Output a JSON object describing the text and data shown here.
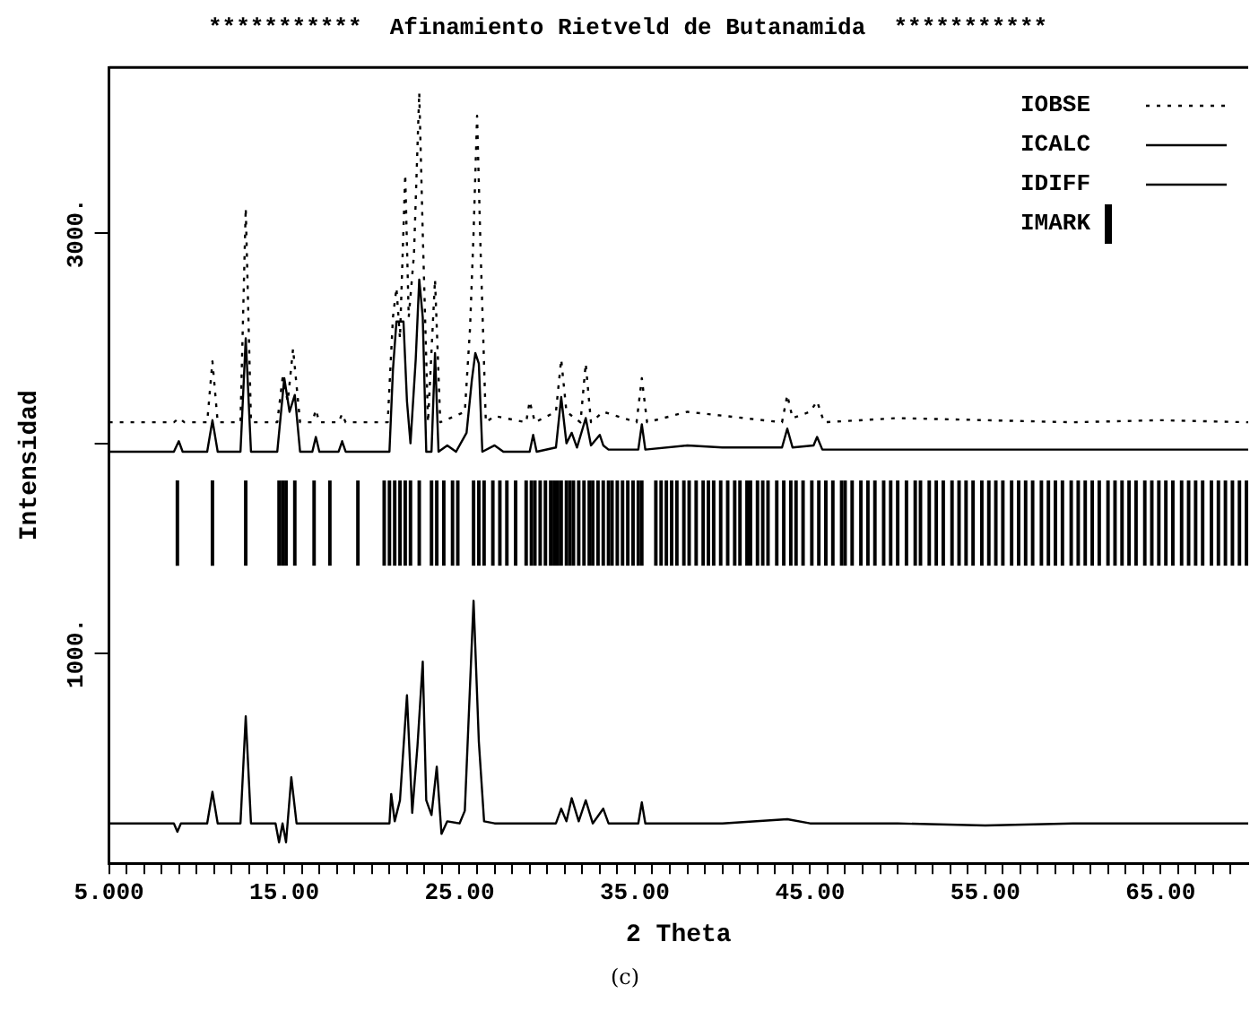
{
  "chart_data": {
    "type": "line",
    "title": "***********  Afinamiento Rietveld de Butanamida  ***********",
    "xlabel": "2 Theta",
    "ylabel": "Intensidad",
    "annotations": [
      "(c)"
    ],
    "legend": "top right",
    "xlim": [
      5,
      70
    ],
    "ylim": [
      0,
      3790
    ],
    "xticks": [
      {
        "value": 5,
        "label": "5.000"
      },
      {
        "value": 6,
        "label": null
      },
      {
        "value": 7,
        "label": null
      },
      {
        "value": 8,
        "label": null
      },
      {
        "value": 9,
        "label": null
      },
      {
        "value": 10,
        "label": null
      },
      {
        "value": 11,
        "label": null
      },
      {
        "value": 12,
        "label": null
      },
      {
        "value": 13,
        "label": null
      },
      {
        "value": 14,
        "label": null
      },
      {
        "value": 15,
        "label": "15.00"
      },
      {
        "value": 16,
        "label": null
      },
      {
        "value": 17,
        "label": null
      },
      {
        "value": 18,
        "label": null
      },
      {
        "value": 19,
        "label": null
      },
      {
        "value": 20,
        "label": null
      },
      {
        "value": 21,
        "label": null
      },
      {
        "value": 22,
        "label": null
      },
      {
        "value": 23,
        "label": null
      },
      {
        "value": 24,
        "label": null
      },
      {
        "value": 25,
        "label": "25.00"
      },
      {
        "value": 26,
        "label": null
      },
      {
        "value": 27,
        "label": null
      },
      {
        "value": 28,
        "label": null
      },
      {
        "value": 29,
        "label": null
      },
      {
        "value": 30,
        "label": null
      },
      {
        "value": 31,
        "label": null
      },
      {
        "value": 32,
        "label": null
      },
      {
        "value": 33,
        "label": null
      },
      {
        "value": 34,
        "label": null
      },
      {
        "value": 35,
        "label": "35.00"
      },
      {
        "value": 36,
        "label": null
      },
      {
        "value": 37,
        "label": null
      },
      {
        "value": 38,
        "label": null
      },
      {
        "value": 39,
        "label": null
      },
      {
        "value": 40,
        "label": null
      },
      {
        "value": 41,
        "label": null
      },
      {
        "value": 42,
        "label": null
      },
      {
        "value": 43,
        "label": null
      },
      {
        "value": 44,
        "label": null
      },
      {
        "value": 45,
        "label": "45.00"
      },
      {
        "value": 46,
        "label": null
      },
      {
        "value": 47,
        "label": null
      },
      {
        "value": 48,
        "label": null
      },
      {
        "value": 49,
        "label": null
      },
      {
        "value": 50,
        "label": null
      },
      {
        "value": 51,
        "label": null
      },
      {
        "value": 52,
        "label": null
      },
      {
        "value": 53,
        "label": null
      },
      {
        "value": 54,
        "label": null
      },
      {
        "value": 55,
        "label": "55.00"
      },
      {
        "value": 56,
        "label": null
      },
      {
        "value": 57,
        "label": null
      },
      {
        "value": 58,
        "label": null
      },
      {
        "value": 59,
        "label": null
      },
      {
        "value": 60,
        "label": null
      },
      {
        "value": 61,
        "label": null
      },
      {
        "value": 62,
        "label": null
      },
      {
        "value": 63,
        "label": null
      },
      {
        "value": 64,
        "label": null
      },
      {
        "value": 65,
        "label": "65.00"
      },
      {
        "value": 66,
        "label": null
      },
      {
        "value": 67,
        "label": null
      },
      {
        "value": 68,
        "label": null
      },
      {
        "value": 69,
        "label": null
      }
    ],
    "yticks": [
      {
        "value": 1000,
        "label": "1000."
      },
      {
        "value": 2000,
        "label": null
      },
      {
        "value": 3000,
        "label": "3000."
      }
    ],
    "series": [
      {
        "name": "IOBSE",
        "color": "#000000",
        "line_style": "dotted",
        "x": [
          5,
          8.7,
          9.0,
          9.3,
          10.6,
          10.9,
          11.2,
          12.5,
          12.8,
          13.1,
          14.6,
          14.9,
          15.2,
          15.5,
          15.9,
          16.6,
          16.8,
          17.0,
          18.1,
          18.3,
          18.5,
          20.9,
          21.2,
          21.4,
          21.6,
          21.9,
          22.1,
          22.4,
          22.7,
          22.9,
          23.2,
          23.6,
          23.9,
          25.3,
          25.6,
          25.8,
          26.0,
          26.2,
          26.5,
          27.0,
          28.8,
          29.0,
          29.3,
          30.5,
          30.8,
          31.1,
          31.9,
          32.2,
          32.5,
          33.2,
          35.1,
          35.4,
          35.7,
          38.0,
          43.4,
          43.7,
          44.0,
          45.0,
          45.4,
          45.8,
          50,
          55,
          60,
          65,
          70
        ],
        "values": [
          2100,
          2100,
          2120,
          2100,
          2100,
          2390,
          2100,
          2100,
          3120,
          2100,
          2100,
          2310,
          2200,
          2450,
          2100,
          2100,
          2160,
          2100,
          2100,
          2140,
          2100,
          2100,
          2600,
          2740,
          2500,
          3280,
          2600,
          2900,
          3670,
          3000,
          2100,
          2780,
          2100,
          2150,
          2550,
          3000,
          3560,
          2920,
          2100,
          2130,
          2100,
          2200,
          2100,
          2150,
          2400,
          2150,
          2100,
          2380,
          2100,
          2150,
          2100,
          2310,
          2100,
          2150,
          2100,
          2230,
          2120,
          2150,
          2200,
          2100,
          2120,
          2110,
          2100,
          2110,
          2100
        ]
      },
      {
        "name": "ICALC",
        "color": "#000000",
        "line_style": "solid",
        "x": [
          5,
          8.7,
          8.98,
          9.2,
          10.6,
          10.9,
          11.2,
          12.5,
          12.8,
          13.1,
          14.6,
          15.0,
          15.3,
          15.6,
          15.9,
          16.6,
          16.8,
          17.0,
          18.1,
          18.3,
          18.5,
          21.0,
          21.2,
          21.4,
          21.8,
          22.0,
          22.2,
          22.5,
          22.7,
          22.9,
          23.1,
          23.4,
          23.6,
          23.8,
          24.3,
          24.8,
          25.4,
          25.7,
          25.9,
          26.1,
          26.3,
          27.0,
          27.5,
          29.0,
          29.2,
          29.4,
          30.5,
          30.8,
          31.1,
          31.4,
          31.7,
          32.2,
          32.5,
          33.0,
          33.2,
          33.5,
          35.2,
          35.4,
          35.6,
          38.0,
          40.0,
          43.4,
          43.7,
          44.0,
          45.2,
          45.4,
          45.7,
          50,
          55,
          60,
          65,
          70
        ],
        "values": [
          1960,
          1960,
          2010,
          1960,
          1960,
          2110,
          1960,
          1960,
          2500,
          1960,
          1960,
          2310,
          2150,
          2230,
          1960,
          1960,
          2030,
          1960,
          1960,
          2010,
          1960,
          1960,
          2350,
          2580,
          2580,
          2200,
          2000,
          2400,
          2780,
          2600,
          1960,
          1960,
          2430,
          1960,
          1990,
          1960,
          2050,
          2300,
          2430,
          2380,
          1960,
          1990,
          1960,
          1960,
          2040,
          1960,
          1980,
          2220,
          2000,
          2050,
          1980,
          2120,
          1990,
          2040,
          1990,
          1970,
          1970,
          2090,
          1970,
          1990,
          1980,
          1980,
          2070,
          1980,
          1990,
          2030,
          1970,
          1970,
          1970,
          1970,
          1970,
          1970
        ]
      },
      {
        "name": "IDIFF",
        "color": "#000000",
        "line_style": "solid",
        "x": [
          5,
          8.7,
          8.9,
          9.1,
          10.6,
          10.9,
          11.2,
          12.5,
          12.8,
          13.1,
          14.5,
          14.7,
          14.9,
          15.1,
          15.4,
          15.7,
          21.0,
          21.1,
          21.3,
          21.6,
          22.0,
          22.3,
          22.6,
          22.9,
          23.1,
          23.4,
          23.7,
          23.97,
          24.3,
          25.0,
          25.3,
          25.8,
          26.1,
          26.4,
          27.0,
          30.5,
          30.8,
          31.1,
          31.4,
          31.8,
          32.2,
          32.6,
          33.2,
          33.5,
          35.2,
          35.4,
          35.6,
          40,
          43.7,
          45,
          50,
          55,
          60,
          65,
          70
        ],
        "values": [
          190,
          190,
          150,
          190,
          190,
          340,
          190,
          190,
          700,
          190,
          190,
          100,
          190,
          100,
          410,
          190,
          190,
          330,
          200,
          300,
          800,
          240,
          560,
          960,
          300,
          230,
          460,
          140,
          200,
          190,
          250,
          1250,
          580,
          200,
          190,
          190,
          260,
          200,
          310,
          200,
          300,
          190,
          260,
          190,
          190,
          290,
          190,
          190,
          210,
          190,
          190,
          180,
          190,
          190,
          190
        ]
      },
      {
        "name": "IMARK",
        "type": "bar",
        "color": "#000000",
        "x": [
          8.9,
          10.9,
          12.8,
          14.7,
          14.9,
          15.1,
          15.6,
          16.7,
          17.6,
          19.2,
          20.7,
          21.0,
          21.3,
          21.6,
          21.9,
          22.2,
          22.7,
          23.4,
          23.7,
          24.1,
          24.6,
          24.9,
          25.8,
          26.1,
          26.4,
          26.9,
          27.3,
          27.7,
          28.2,
          28.8,
          29.1,
          29.3,
          29.6,
          29.9,
          30.2,
          30.4,
          30.6,
          30.8,
          31.1,
          31.3,
          31.5,
          31.8,
          32.1,
          32.4,
          32.6,
          32.9,
          33.2,
          33.5,
          33.7,
          34.0,
          34.3,
          34.6,
          34.9,
          35.2,
          35.4,
          36.2,
          36.5,
          36.8,
          37.1,
          37.4,
          37.8,
          38.1,
          38.5,
          38.9,
          39.2,
          39.5,
          39.9,
          40.3,
          40.7,
          41.0,
          41.4,
          41.6,
          42.0,
          42.3,
          42.6,
          43.1,
          43.5,
          43.9,
          44.2,
          44.6,
          45.1,
          45.5,
          45.9,
          46.3,
          46.8,
          47.0,
          47.4,
          47.9,
          48.3,
          48.7,
          49.2,
          49.6,
          50.0,
          50.5,
          51.0,
          51.3,
          51.8,
          52.2,
          52.6,
          53.1,
          53.5,
          53.9,
          54.3,
          54.8,
          55.2,
          55.6,
          56.0,
          56.5,
          56.9,
          57.3,
          57.7,
          58.2,
          58.6,
          59.0,
          59.4,
          59.9,
          60.3,
          60.7,
          61.1,
          61.5,
          62.0,
          62.4,
          62.8,
          63.2,
          63.6,
          64.1,
          64.5,
          64.9,
          65.3,
          65.7,
          66.2,
          66.6,
          67.0,
          67.4,
          67.9,
          68.3,
          68.7,
          69.1,
          69.5,
          69.9
        ],
        "base": [
          1420,
          1420,
          1420,
          1420,
          1420,
          1420,
          1420,
          1420,
          1420,
          1420,
          1420,
          1420,
          1420,
          1420,
          1420,
          1420,
          1420,
          1420,
          1420,
          1420,
          1420,
          1420,
          1420,
          1420,
          1420,
          1420,
          1420,
          1420,
          1420,
          1420,
          1420,
          1420,
          1420,
          1420,
          1420,
          1420,
          1420,
          1420,
          1420,
          1420,
          1420,
          1420,
          1420,
          1420,
          1420,
          1420,
          1420,
          1420,
          1420,
          1420,
          1420,
          1420,
          1420,
          1420,
          1420,
          1420,
          1420,
          1420,
          1420,
          1420,
          1420,
          1420,
          1420,
          1420,
          1420,
          1420,
          1420,
          1420,
          1420,
          1420,
          1420,
          1420,
          1420,
          1420,
          1420,
          1420,
          1420,
          1420,
          1420,
          1420,
          1420,
          1420,
          1420,
          1420,
          1420,
          1420,
          1420,
          1420,
          1420,
          1420,
          1420,
          1420,
          1420,
          1420,
          1420,
          1420,
          1420,
          1420,
          1420,
          1420,
          1420,
          1420,
          1420,
          1420,
          1420,
          1420,
          1420,
          1420,
          1420,
          1420,
          1420,
          1420,
          1420,
          1420,
          1420,
          1420,
          1420,
          1420,
          1420,
          1420,
          1420,
          1420,
          1420,
          1420,
          1420,
          1420,
          1420,
          1420,
          1420,
          1420,
          1420,
          1420,
          1420,
          1420,
          1420,
          1420,
          1420,
          1420,
          1420,
          1420
        ],
        "values": [
          400,
          400,
          400,
          400,
          400,
          400,
          400,
          400,
          400,
          400,
          400,
          400,
          400,
          400,
          400,
          400,
          400,
          400,
          400,
          400,
          400,
          400,
          400,
          400,
          400,
          400,
          400,
          400,
          400,
          400,
          400,
          400,
          400,
          400,
          400,
          400,
          400,
          400,
          400,
          400,
          400,
          400,
          400,
          400,
          400,
          400,
          400,
          400,
          400,
          400,
          400,
          400,
          400,
          400,
          400,
          400,
          400,
          400,
          400,
          400,
          400,
          400,
          400,
          400,
          400,
          400,
          400,
          400,
          400,
          400,
          400,
          400,
          400,
          400,
          400,
          400,
          400,
          400,
          400,
          400,
          400,
          400,
          400,
          400,
          400,
          400,
          400,
          400,
          400,
          400,
          400,
          400,
          400,
          400,
          400,
          400,
          400,
          400,
          400,
          400,
          400,
          400,
          400,
          400,
          400,
          400,
          400,
          400,
          400,
          400,
          400,
          400,
          400,
          400,
          400,
          400,
          400,
          400,
          400,
          400,
          400,
          400,
          400,
          400,
          400,
          400,
          400,
          400,
          400,
          400,
          400,
          400,
          400,
          400,
          400,
          400,
          400,
          400,
          400,
          400
        ]
      }
    ]
  }
}
